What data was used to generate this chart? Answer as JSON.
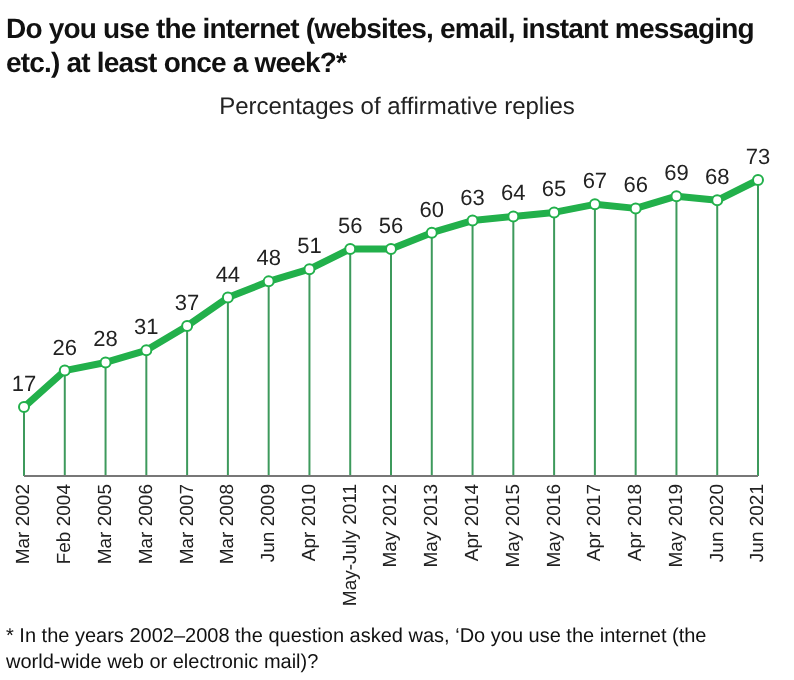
{
  "chart_data": {
    "type": "line",
    "title": "Do you use the internet (websites, email, instant messaging etc.) at least once a week?*",
    "subtitle": "Percentages of affirmative replies",
    "categories": [
      "Mar 2002",
      "Feb 2004",
      "Mar 2005",
      "Mar 2006",
      "Mar 2007",
      "Mar 2008",
      "Jun 2009",
      "Apr 2010",
      "May-July 2011",
      "May 2012",
      "May 2013",
      "Apr 2014",
      "May 2015",
      "May 2016",
      "Apr 2017",
      "Apr 2018",
      "May 2019",
      "Jun 2020",
      "Jun 2021"
    ],
    "series": [
      {
        "color": "#22b04b",
        "values": [
          17,
          26,
          28,
          31,
          37,
          44,
          48,
          51,
          56,
          56,
          60,
          63,
          64,
          65,
          67,
          66,
          69,
          68,
          73
        ]
      }
    ],
    "data_labels": true,
    "marker": "circle",
    "grid": "x",
    "annotations": [
      "* In the years 2002–2008 the question asked was, ‘Do you use the internet (the world-wide web or electronic mail)?"
    ]
  }
}
